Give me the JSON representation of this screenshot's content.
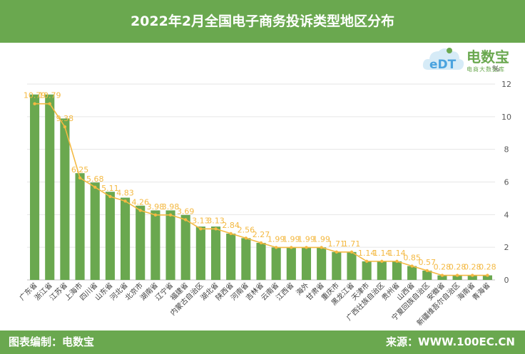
{
  "header": {
    "title": "2022年2月全国电子商务投诉类型地区分布"
  },
  "footer": {
    "left": "图表编制：电数宝",
    "right": "来源：WWW.100EC.CN"
  },
  "logo": {
    "name": "电数宝",
    "sub": "电商大数据库",
    "mark": "eDT"
  },
  "colors": {
    "bar": "#6aa84f",
    "line": "#f4b942",
    "label": "#f4b942",
    "header": "#6aa84f"
  },
  "chart_data": {
    "type": "bar",
    "categories": [
      "广东省",
      "浙江省",
      "江苏省",
      "上海市",
      "四川省",
      "山东省",
      "河北省",
      "北京市",
      "湖南省",
      "辽宁省",
      "福建省",
      "内蒙古自治区",
      "湖北省",
      "陕西省",
      "河南省",
      "吉林省",
      "云南省",
      "江西省",
      "海外",
      "甘肃省",
      "重庆市",
      "黑龙江省",
      "天津市",
      "广西壮族自治区",
      "贵州省",
      "山西省",
      "宁夏回族自治区",
      "安徽省",
      "新疆维吾尔自治区",
      "海南省",
      "青海省"
    ],
    "series": [
      {
        "type": "bar",
        "values": [
          11.36,
          11.36,
          9.89,
          6.54,
          5.97,
          5.4,
          5.04,
          4.55,
          4.26,
          4.26,
          3.98,
          3.27,
          3.27,
          2.84,
          2.56,
          2.27,
          1.99,
          1.99,
          1.99,
          1.99,
          1.71,
          1.71,
          1.14,
          1.14,
          1.14,
          0.85,
          0.57,
          0.28,
          0.28,
          0.28,
          0.28
        ]
      },
      {
        "type": "line",
        "values": [
          10.79,
          10.79,
          9.38,
          6.25,
          5.68,
          5.11,
          4.83,
          4.26,
          3.98,
          3.98,
          3.69,
          3.13,
          3.13,
          2.84,
          2.56,
          2.27,
          1.99,
          1.99,
          1.99,
          1.99,
          1.71,
          1.71,
          1.14,
          1.14,
          1.14,
          0.85,
          0.57,
          0.28,
          0.28,
          0.28,
          0.28
        ]
      }
    ],
    "data_labels": [
      "10.79",
      "10.79",
      "9.38",
      "6.25",
      "5.68",
      "5.11",
      "4.83",
      "4.26",
      "3.98",
      "3.98",
      "3.69",
      "3.13",
      "3.13",
      "2.84",
      "2.56",
      "2.27",
      "1.99",
      "1.99",
      "1.99",
      "1.99",
      "1.71",
      "1.71",
      "1.14",
      "1.14",
      "1.14",
      "0.85",
      "0.57",
      "0.28",
      "0.28",
      "0.28",
      "0.28"
    ],
    "ylabel": "%",
    "ylim": [
      0,
      12
    ],
    "yticks": [
      "0",
      "2",
      "4",
      "6",
      "8",
      "10",
      "12"
    ],
    "y_axis_position": "right",
    "grid": true
  }
}
